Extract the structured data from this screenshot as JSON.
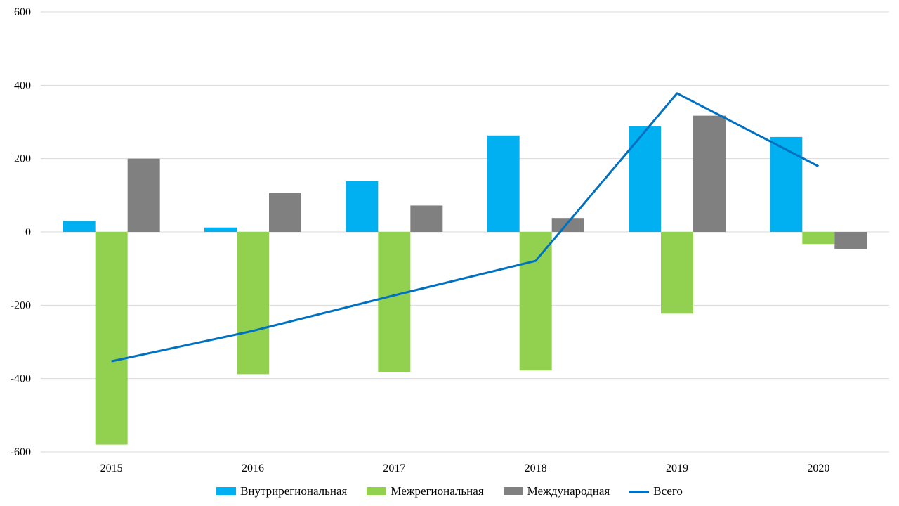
{
  "chart_data": {
    "type": "bar",
    "categories": [
      "2015",
      "2016",
      "2017",
      "2018",
      "2019",
      "2020"
    ],
    "series": [
      {
        "name": "Внутрирегиональная",
        "kind": "bar",
        "color": "#00B0F0",
        "values": [
          30,
          12,
          138,
          263,
          288,
          259
        ]
      },
      {
        "name": "Межрегиональная",
        "kind": "bar",
        "color": "#92D050",
        "values": [
          -580,
          -388,
          -383,
          -378,
          -223,
          -33
        ]
      },
      {
        "name": "Международная",
        "kind": "bar",
        "color": "#808080",
        "values": [
          200,
          106,
          72,
          38,
          317,
          -47
        ]
      },
      {
        "name": "Всего",
        "kind": "line",
        "color": "#0070C0",
        "values": [
          -353,
          -270,
          -173,
          -79,
          378,
          179
        ]
      }
    ],
    "ylim": [
      -600,
      600
    ],
    "yticks": [
      "-600",
      "-400",
      "-200",
      "0",
      "200",
      "400",
      "600"
    ],
    "ytick_values": [
      -600,
      -400,
      -200,
      0,
      200,
      400,
      600
    ],
    "grid": true,
    "legend": "bottom"
  }
}
